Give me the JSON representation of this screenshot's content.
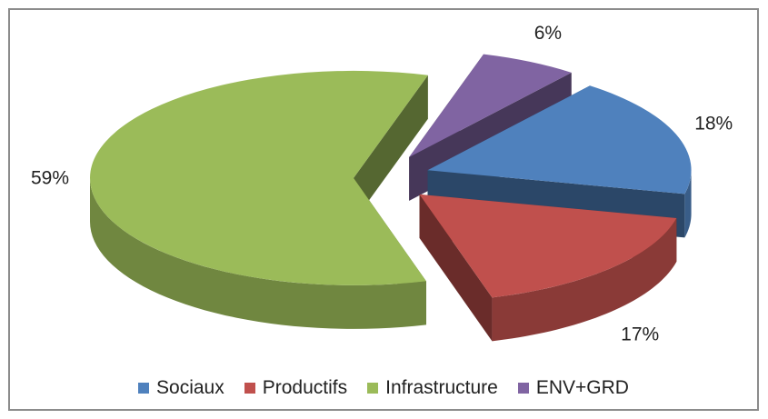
{
  "chart_data": {
    "type": "pie",
    "title": "",
    "categories": [
      "Sociaux",
      "Productifs",
      "Infrastructure",
      "ENV+GRD"
    ],
    "values": [
      18,
      17,
      59,
      6
    ],
    "data_labels": [
      "18%",
      "17%",
      "59%",
      "6%"
    ],
    "colors": [
      "#4f81bd",
      "#c0504d",
      "#9bbb59",
      "#8064a2"
    ],
    "legend_position": "bottom",
    "style": "3d-exploded"
  }
}
